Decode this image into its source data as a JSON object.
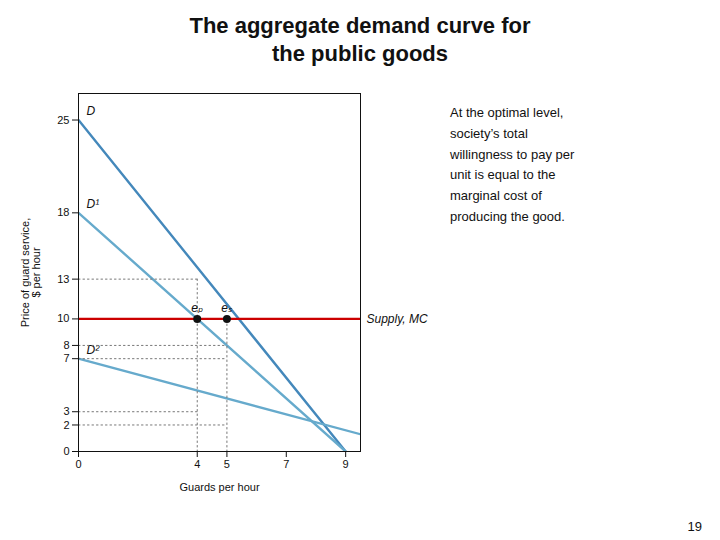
{
  "chart_data": {
    "type": "line",
    "title": "The aggregate demand curve for\nthe public goods",
    "annotations": [
      {
        "text": "At the optimal level,\nsociety’s total\nwillingness to pay per\nunit is equal to the\nmarginal cost of\nproducing the good."
      }
    ],
    "page_number": "19",
    "xlabel": "Guards per hour",
    "ylabel": "Price of guard service,\n$ per hour",
    "xlim": [
      0,
      9.5
    ],
    "ylim": [
      0,
      27
    ],
    "xticks": [
      0,
      4,
      5,
      7,
      9
    ],
    "yticks": [
      0,
      2,
      3,
      7,
      8,
      10,
      13,
      18,
      25
    ],
    "series": [
      {
        "name": "D",
        "x": [
          0,
          9
        ],
        "values": [
          25,
          0
        ],
        "color": "#4488bb"
      },
      {
        "name": "D¹",
        "x": [
          0,
          9
        ],
        "values": [
          18,
          0
        ],
        "color": "#66aacc"
      },
      {
        "name": "D²",
        "x": [
          0,
          9.5
        ],
        "values": [
          7,
          1.3
        ],
        "color": "#66aacc"
      },
      {
        "name": "Supply, MC",
        "x": [
          0,
          9.5
        ],
        "values": [
          10,
          10
        ],
        "color": "#cc0000"
      },
      {
        "x": [
          0,
          4
        ],
        "values": [
          13,
          13
        ],
        "color": "#777777",
        "line_style": "dotted"
      },
      {
        "x": [
          0,
          5
        ],
        "values": [
          8,
          8
        ],
        "color": "#777777",
        "line_style": "dotted"
      },
      {
        "x": [
          0,
          5
        ],
        "values": [
          7,
          7
        ],
        "color": "#777777",
        "line_style": "dotted"
      },
      {
        "x": [
          0,
          4
        ],
        "values": [
          3,
          3
        ],
        "color": "#777777",
        "line_style": "dotted"
      },
      {
        "x": [
          0,
          5
        ],
        "values": [
          2,
          2
        ],
        "color": "#777777",
        "line_style": "dotted"
      },
      {
        "x": [
          4,
          4
        ],
        "values": [
          0,
          13
        ],
        "color": "#777777",
        "line_style": "dotted"
      },
      {
        "x": [
          5,
          5
        ],
        "values": [
          0,
          10
        ],
        "color": "#777777",
        "line_style": "dotted"
      },
      {
        "type": "scatter",
        "x": [
          4,
          5
        ],
        "values": [
          10,
          10
        ],
        "labels": [
          "eₚ",
          "eₛ"
        ],
        "color": "#111111"
      }
    ]
  }
}
